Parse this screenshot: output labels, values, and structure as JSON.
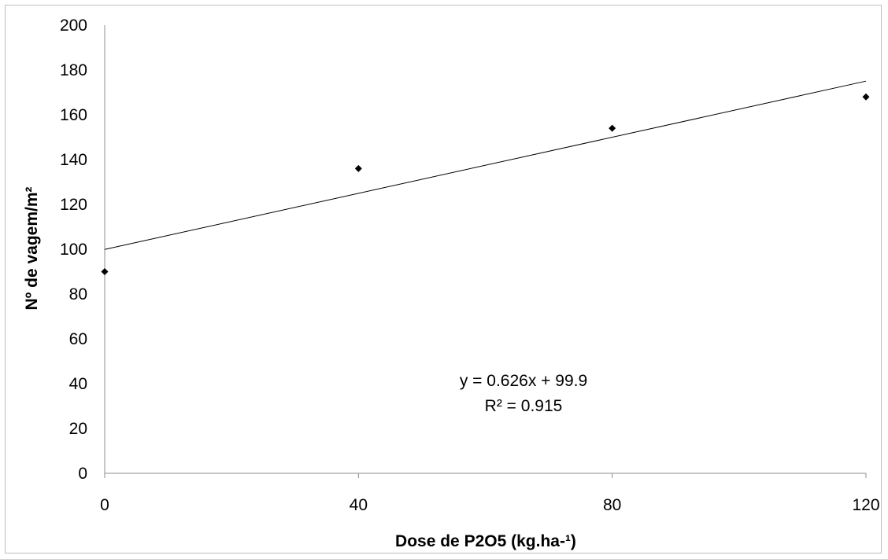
{
  "chart_data": {
    "type": "scatter",
    "title": "",
    "xlabel": "Dose de P2O5 (kg.ha-¹)",
    "ylabel": "Nº de vagem/m²",
    "xlim": [
      0,
      120
    ],
    "ylim": [
      0,
      200
    ],
    "x_ticks": [
      0,
      40,
      80,
      120
    ],
    "x_tick_labels": [
      "0",
      "40",
      "80",
      "120"
    ],
    "y_ticks": [
      0,
      20,
      40,
      60,
      80,
      100,
      120,
      140,
      160,
      180,
      200
    ],
    "y_tick_labels": [
      "0",
      "20",
      "40",
      "60",
      "80",
      "100",
      "120",
      "140",
      "160",
      "180",
      "200"
    ],
    "grid": false,
    "legend": "none",
    "series": [
      {
        "x": [
          0,
          40,
          80,
          120
        ],
        "y": [
          90,
          136,
          154,
          168
        ],
        "marker": "diamond",
        "color": "#000000"
      }
    ],
    "trendline": {
      "type": "linear",
      "slope": 0.626,
      "intercept": 99.9,
      "color": "#000000"
    },
    "annotations": {
      "equation": "y = 0.626x + 99.9",
      "r_squared": "R² = 0.915"
    }
  }
}
